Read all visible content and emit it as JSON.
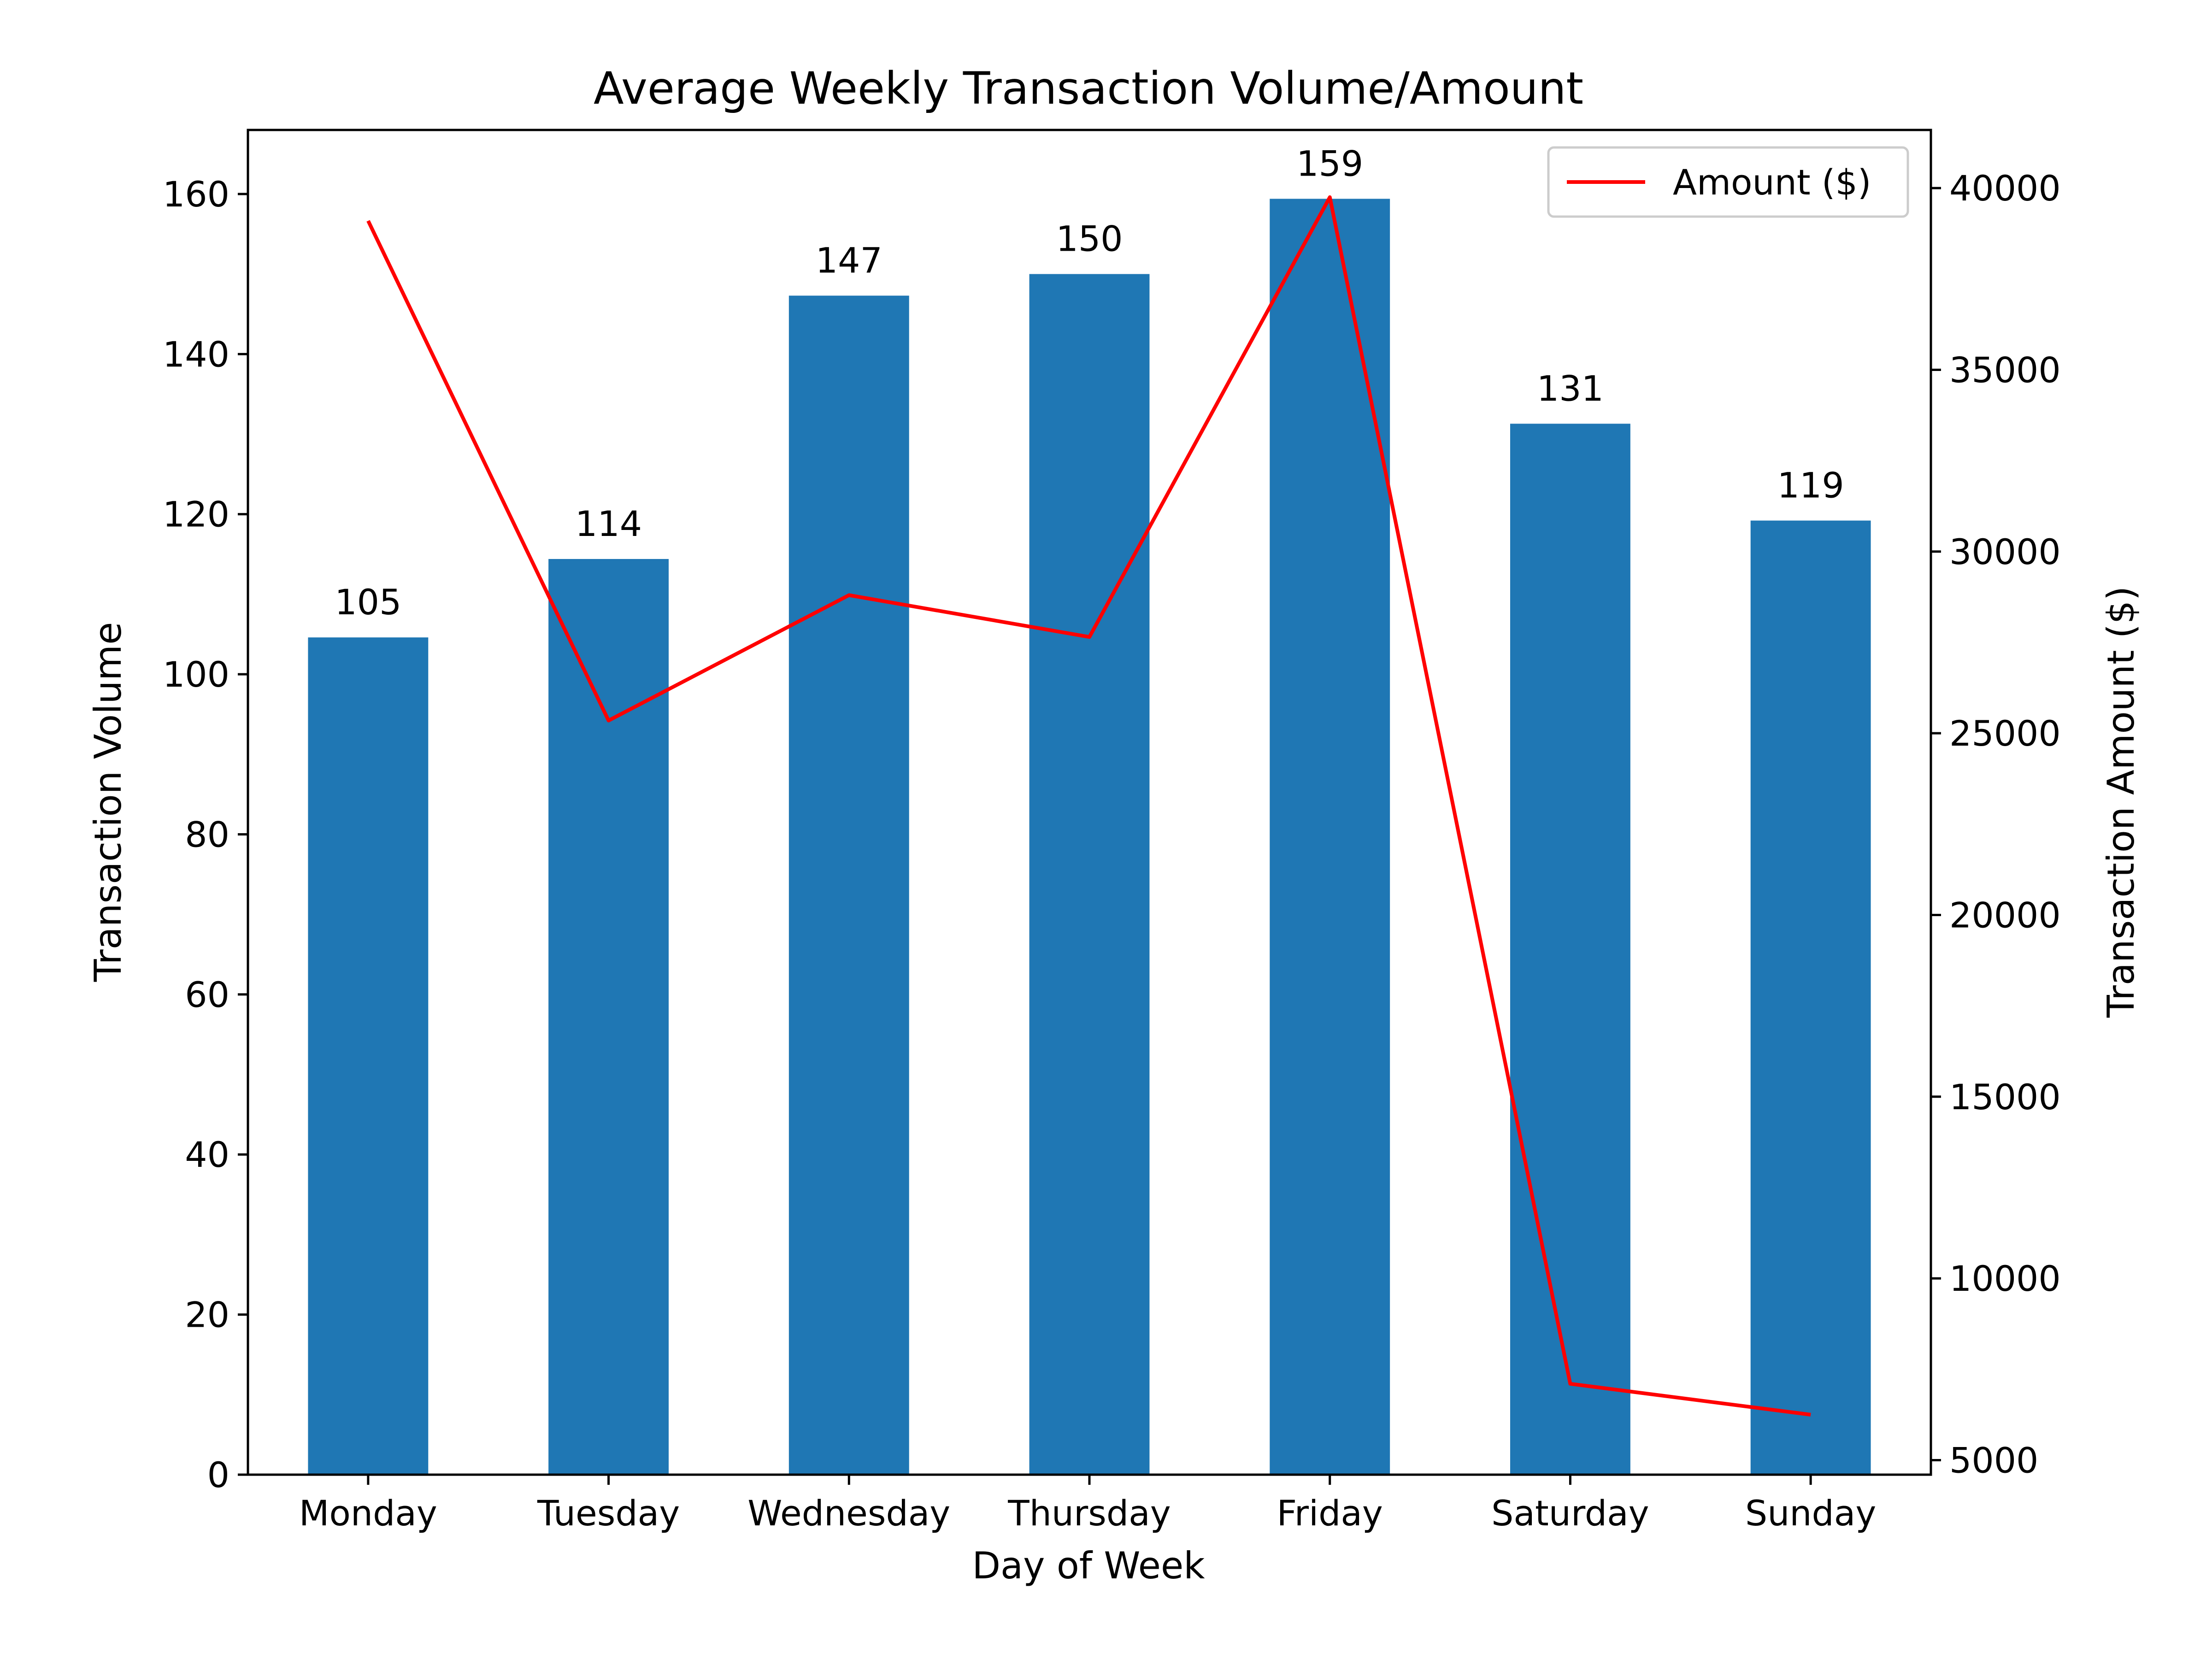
{
  "chart_data": {
    "type": "bar",
    "title": "Average Weekly Transaction Volume/Amount",
    "xlabel": "Day of Week",
    "ylabel": "Transaction Volume",
    "y2label": "Transaction Amount ($)",
    "categories": [
      "Monday",
      "Tuesday",
      "Wednesday",
      "Thursday",
      "Friday",
      "Saturday",
      "Sunday"
    ],
    "series": [
      {
        "name": "",
        "type": "bar",
        "axis": "left",
        "color": "#1f77b4",
        "values": [
          104.6,
          114.4,
          147.3,
          150.0,
          159.4,
          131.3,
          119.2
        ],
        "labels": [
          "105",
          "114",
          "147",
          "150",
          "159",
          "131",
          "119"
        ]
      },
      {
        "name": "Amount ($)",
        "type": "line",
        "axis": "right",
        "color": "#ff0000",
        "values": [
          39100,
          25350,
          28800,
          27650,
          39750,
          7100,
          6250
        ]
      }
    ],
    "ylim": [
      0,
      168
    ],
    "y2lim": [
      4600,
      41600
    ],
    "yticks": [
      0,
      20,
      40,
      60,
      80,
      100,
      120,
      140,
      160
    ],
    "y2ticks": [
      5000,
      10000,
      15000,
      20000,
      25000,
      30000,
      35000,
      40000
    ],
    "grid": false,
    "legend": "top-right"
  }
}
